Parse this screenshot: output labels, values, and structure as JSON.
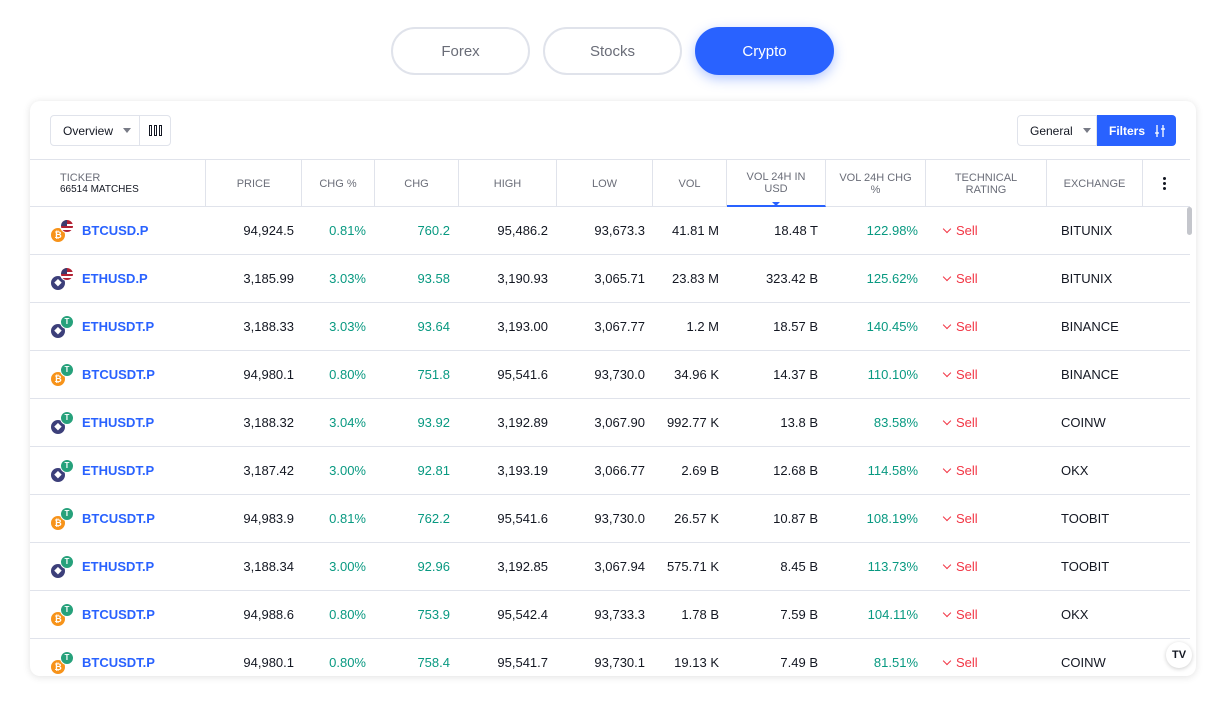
{
  "tabs": [
    {
      "label": "Forex",
      "active": false
    },
    {
      "label": "Stocks",
      "active": false
    },
    {
      "label": "Crypto",
      "active": true
    }
  ],
  "toolbar": {
    "view_label": "Overview",
    "preset_label": "General",
    "filters_label": "Filters"
  },
  "columns": {
    "ticker": "TICKER",
    "matches": "66514 MATCHES",
    "price": "PRICE",
    "chg_pct": "CHG %",
    "chg": "CHG",
    "high": "HIGH",
    "low": "LOW",
    "vol": "VOL",
    "vol24_usd": "VOL 24H IN USD",
    "vol24_chg": "VOL 24H CHG %",
    "rating": "TECHNICAL RATING",
    "exchange": "EXCHANGE"
  },
  "rows": [
    {
      "symbol": "BTCUSD.P",
      "coin": "btc",
      "base": "usd",
      "price": "94,924.5",
      "chg_pct": "0.81%",
      "chg": "760.2",
      "high": "95,486.2",
      "low": "93,673.3",
      "vol": "41.81 M",
      "vol24_usd": "18.48 T",
      "vol24_chg": "122.98%",
      "rating": "Sell",
      "exchange": "BITUNIX"
    },
    {
      "symbol": "ETHUSD.P",
      "coin": "eth",
      "base": "usd",
      "price": "3,185.99",
      "chg_pct": "3.03%",
      "chg": "93.58",
      "high": "3,190.93",
      "low": "3,065.71",
      "vol": "23.83 M",
      "vol24_usd": "323.42 B",
      "vol24_chg": "125.62%",
      "rating": "Sell",
      "exchange": "BITUNIX"
    },
    {
      "symbol": "ETHUSDT.P",
      "coin": "eth",
      "base": "usdt",
      "price": "3,188.33",
      "chg_pct": "3.03%",
      "chg": "93.64",
      "high": "3,193.00",
      "low": "3,067.77",
      "vol": "1.2 M",
      "vol24_usd": "18.57 B",
      "vol24_chg": "140.45%",
      "rating": "Sell",
      "exchange": "BINANCE"
    },
    {
      "symbol": "BTCUSDT.P",
      "coin": "btc",
      "base": "usdt",
      "price": "94,980.1",
      "chg_pct": "0.80%",
      "chg": "751.8",
      "high": "95,541.6",
      "low": "93,730.0",
      "vol": "34.96 K",
      "vol24_usd": "14.37 B",
      "vol24_chg": "110.10%",
      "rating": "Sell",
      "exchange": "BINANCE"
    },
    {
      "symbol": "ETHUSDT.P",
      "coin": "eth",
      "base": "usdt",
      "price": "3,188.32",
      "chg_pct": "3.04%",
      "chg": "93.92",
      "high": "3,192.89",
      "low": "3,067.90",
      "vol": "992.77 K",
      "vol24_usd": "13.8 B",
      "vol24_chg": "83.58%",
      "rating": "Sell",
      "exchange": "COINW"
    },
    {
      "symbol": "ETHUSDT.P",
      "coin": "eth",
      "base": "usdt",
      "price": "3,187.42",
      "chg_pct": "3.00%",
      "chg": "92.81",
      "high": "3,193.19",
      "low": "3,066.77",
      "vol": "2.69 B",
      "vol24_usd": "12.68 B",
      "vol24_chg": "114.58%",
      "rating": "Sell",
      "exchange": "OKX"
    },
    {
      "symbol": "BTCUSDT.P",
      "coin": "btc",
      "base": "usdt",
      "price": "94,983.9",
      "chg_pct": "0.81%",
      "chg": "762.2",
      "high": "95,541.6",
      "low": "93,730.0",
      "vol": "26.57 K",
      "vol24_usd": "10.87 B",
      "vol24_chg": "108.19%",
      "rating": "Sell",
      "exchange": "TOOBIT"
    },
    {
      "symbol": "ETHUSDT.P",
      "coin": "eth",
      "base": "usdt",
      "price": "3,188.34",
      "chg_pct": "3.00%",
      "chg": "92.96",
      "high": "3,192.85",
      "low": "3,067.94",
      "vol": "575.71 K",
      "vol24_usd": "8.45 B",
      "vol24_chg": "113.73%",
      "rating": "Sell",
      "exchange": "TOOBIT"
    },
    {
      "symbol": "BTCUSDT.P",
      "coin": "btc",
      "base": "usdt",
      "price": "94,988.6",
      "chg_pct": "0.80%",
      "chg": "753.9",
      "high": "95,542.4",
      "low": "93,733.3",
      "vol": "1.78 B",
      "vol24_usd": "7.59 B",
      "vol24_chg": "104.11%",
      "rating": "Sell",
      "exchange": "OKX"
    },
    {
      "symbol": "BTCUSDT.P",
      "coin": "btc",
      "base": "usdt",
      "price": "94,980.1",
      "chg_pct": "0.80%",
      "chg": "758.4",
      "high": "95,541.7",
      "low": "93,730.1",
      "vol": "19.13 K",
      "vol24_usd": "7.49 B",
      "vol24_chg": "81.51%",
      "rating": "Sell",
      "exchange": "COINW"
    }
  ],
  "watermark": "TV",
  "colors": {
    "accent": "#2962ff",
    "positive": "#089981",
    "negative": "#f23645"
  },
  "icons": {
    "coin_btc": "bitcoin-icon",
    "coin_eth": "ethereum-icon",
    "base_usd": "us-flag-icon",
    "base_usdt": "tether-icon"
  }
}
